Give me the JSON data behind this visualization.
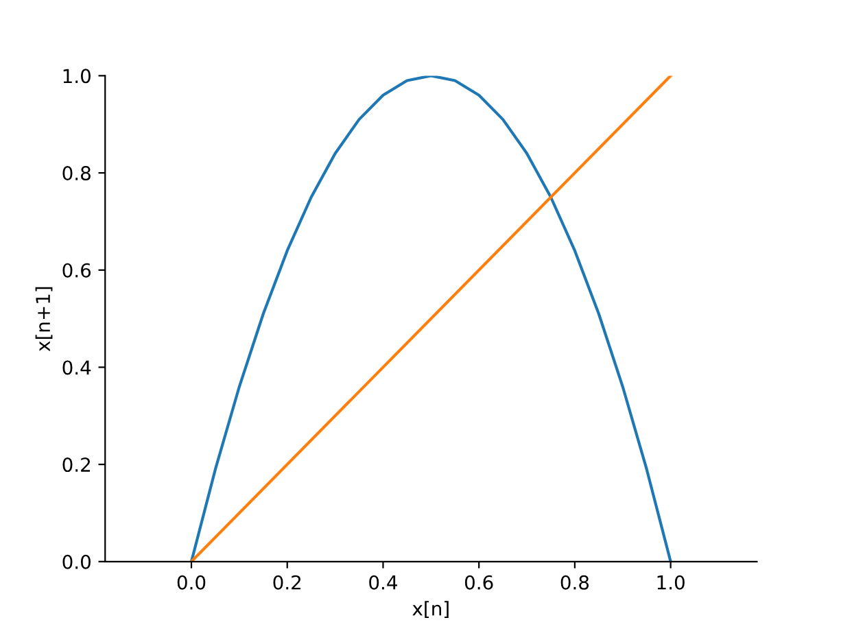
{
  "chart_data": {
    "type": "line",
    "xlabel": "x[n]",
    "ylabel": "x[n+1]",
    "xlim": [
      -0.18,
      1.18
    ],
    "ylim": [
      0,
      1.0
    ],
    "xticks": [
      {
        "value": 0,
        "label": "0.0"
      },
      {
        "value": 0.2,
        "label": "0.2"
      },
      {
        "value": 0.4,
        "label": "0.4"
      },
      {
        "value": 0.6,
        "label": "0.6"
      },
      {
        "value": 0.8,
        "label": "0.8"
      },
      {
        "value": 1,
        "label": "1.0"
      }
    ],
    "yticks": [
      {
        "value": 0,
        "label": "0.0"
      },
      {
        "value": 0.2,
        "label": "0.2"
      },
      {
        "value": 0.4,
        "label": "0.4"
      },
      {
        "value": 0.6,
        "label": "0.6"
      },
      {
        "value": 0.8,
        "label": "0.8"
      },
      {
        "value": 1,
        "label": "1.0"
      }
    ],
    "grid": false,
    "legend": false,
    "series": [
      {
        "color": "#1f77b4",
        "x": [
          0,
          0.05,
          0.1,
          0.15,
          0.2,
          0.25,
          0.3,
          0.35,
          0.4,
          0.45,
          0.5,
          0.55,
          0.6,
          0.65,
          0.7,
          0.75,
          0.8,
          0.85,
          0.9,
          0.95,
          1.0
        ],
        "values": [
          0,
          0.19,
          0.36,
          0.51,
          0.64,
          0.75,
          0.84,
          0.91,
          0.96,
          0.99,
          1.0,
          0.99,
          0.96,
          0.91,
          0.84,
          0.75,
          0.64,
          0.51,
          0.36,
          0.19,
          0
        ]
      },
      {
        "color": "#ff7f0e",
        "x": [
          0,
          1.0
        ],
        "values": [
          0,
          1.0
        ]
      }
    ]
  }
}
